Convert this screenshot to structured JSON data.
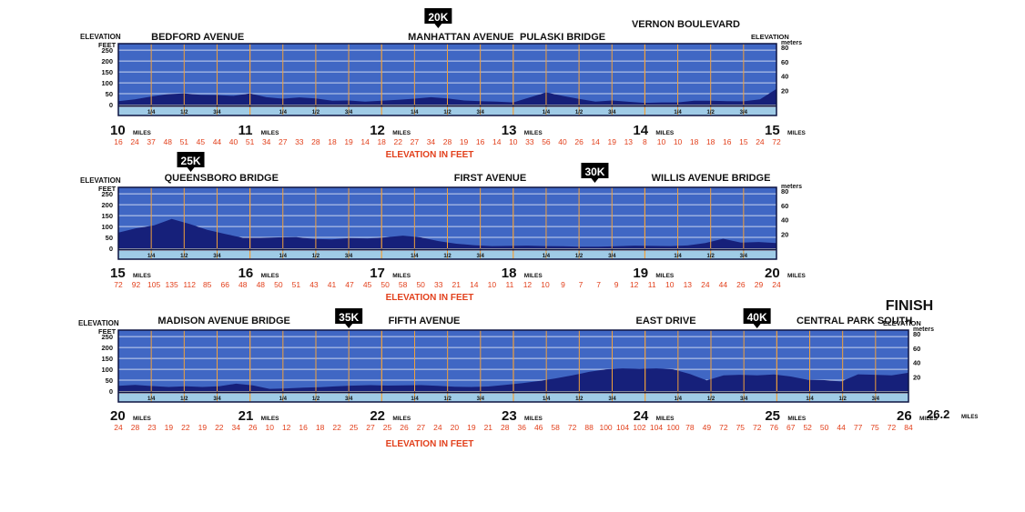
{
  "chart_data": [
    {
      "type": "area",
      "mile_start": 10,
      "mile_end": 15,
      "mile_labels": [
        "10",
        "11",
        "12",
        "13",
        "14",
        "15"
      ],
      "miles_word": "MILES",
      "quarter_labels": [
        "1/4",
        "1/2",
        "3/4"
      ],
      "yticks_feet": [
        "250",
        "200",
        "150",
        "100",
        "50",
        "0"
      ],
      "yticks_meters": [
        "80",
        "60",
        "40",
        "20"
      ],
      "y_left_title": [
        "ELEVATION",
        "FEET"
      ],
      "y_right_title": [
        "ELEVATION",
        "meters"
      ],
      "ylim_feet": [
        0,
        280
      ],
      "place_labels": [
        {
          "text": "BEDFORD AVENUE",
          "mile": 10.25
        },
        {
          "text": "MANHATTAN AVENUE",
          "mile": 12.2
        },
        {
          "text": "PULASKI BRIDGE",
          "mile": 13.05
        },
        {
          "text": "VERNON BOULEVARD",
          "mile": 13.9
        }
      ],
      "km_marker": {
        "text": "20K",
        "mile": 12.43
      },
      "elevation_feet": [
        16,
        24,
        37,
        48,
        51,
        45,
        44,
        40,
        51,
        34,
        27,
        33,
        28,
        18,
        19,
        14,
        18,
        22,
        27,
        34,
        28,
        19,
        16,
        14,
        10,
        33,
        56,
        40,
        26,
        14,
        19,
        13,
        8,
        10,
        10,
        18,
        18,
        16,
        15,
        24,
        72
      ],
      "elevation_labels": [
        "16",
        "24",
        "37",
        "48",
        "51",
        "45",
        "44",
        "40",
        "51",
        "34",
        "27",
        "33",
        "28",
        "18",
        "19",
        "14",
        "18",
        "22",
        "27",
        "34",
        "28",
        "19",
        "16",
        "14",
        "10",
        "33",
        "56",
        "40",
        "26",
        "14",
        "19",
        "13",
        "8",
        "10",
        "10",
        "18",
        "18",
        "16",
        "15",
        "24",
        "72"
      ],
      "xlabel": "ELEVATION IN FEET"
    },
    {
      "type": "area",
      "mile_start": 15,
      "mile_end": 20,
      "mile_labels": [
        "15",
        "16",
        "17",
        "18",
        "19",
        "20"
      ],
      "miles_word": "MILES",
      "quarter_labels": [
        "1/4",
        "1/2",
        "3/4"
      ],
      "yticks_feet": [
        "250",
        "200",
        "150",
        "100",
        "50",
        "0"
      ],
      "yticks_meters": [
        "80",
        "60",
        "40",
        "20"
      ],
      "y_left_title": [
        "ELEVATION",
        "FEET"
      ],
      "y_right_title": [
        "meters"
      ],
      "ylim_feet": [
        0,
        280
      ],
      "place_labels": [
        {
          "text": "QUEENSBORO BRIDGE",
          "mile": 15.35
        },
        {
          "text": "FIRST AVENUE",
          "mile": 17.55
        },
        {
          "text": "WILLIS AVENUE BRIDGE",
          "mile": 19.05
        }
      ],
      "km_marker": {
        "text": "30K",
        "mile": 18.62
      },
      "km_marker_above": {
        "text": "25K",
        "mile": 15.55
      },
      "elevation_feet": [
        72,
        92,
        105,
        135,
        112,
        85,
        66,
        48,
        48,
        50,
        51,
        43,
        41,
        47,
        45,
        50,
        58,
        50,
        33,
        21,
        14,
        10,
        11,
        12,
        10,
        9,
        7,
        7,
        9,
        12,
        11,
        10,
        13,
        24,
        44,
        26,
        29,
        24
      ],
      "elevation_labels": [
        "72",
        "92",
        "105",
        "135",
        "112",
        "85",
        "66",
        "48",
        "48",
        "50",
        "51",
        "43",
        "41",
        "47",
        "45",
        "50",
        "58",
        "50",
        "33",
        "21",
        "14",
        "10",
        "11",
        "12",
        "10",
        "9",
        "7",
        "7",
        "9",
        "12",
        "11",
        "10",
        "13",
        "24",
        "44",
        "26",
        "29",
        "24"
      ],
      "xlabel": "ELEVATION IN FEET"
    },
    {
      "type": "area",
      "mile_start": 20,
      "mile_end": 26,
      "mile_labels": [
        "20",
        "21",
        "22",
        "23",
        "24",
        "25",
        "26"
      ],
      "mile_final": "26.2",
      "miles_word": "MILES",
      "quarter_labels": [
        "1/4",
        "1/2",
        "3/4"
      ],
      "yticks_feet": [
        "250",
        "200",
        "150",
        "100",
        "50",
        "0"
      ],
      "yticks_meters": [
        "80",
        "60",
        "40",
        "20"
      ],
      "y_left_title": [
        "ELEVATION",
        "FEET"
      ],
      "y_right_title": [
        "ELEVATION",
        "meters"
      ],
      "ylim_feet": [
        0,
        280
      ],
      "place_labels": [
        {
          "text": "MADISON AVENUE BRIDGE",
          "mile": 20.3
        },
        {
          "text": "FIFTH AVENUE",
          "mile": 22.05
        },
        {
          "text": "EAST DRIVE",
          "mile": 23.93
        },
        {
          "text": "CENTRAL PARK SOUTH",
          "mile": 25.15
        }
      ],
      "km_markers": [
        {
          "text": "35K",
          "mile": 21.75
        },
        {
          "text": "40K",
          "mile": 24.85
        }
      ],
      "finish_label": "FINISH",
      "elevation_feet": [
        24,
        28,
        23,
        19,
        22,
        19,
        22,
        34,
        26,
        10,
        12,
        16,
        18,
        22,
        25,
        27,
        25,
        26,
        27,
        24,
        20,
        19,
        21,
        28,
        36,
        46,
        58,
        72,
        88,
        100,
        104,
        102,
        104,
        100,
        78,
        49,
        72,
        75,
        72,
        76,
        67,
        52,
        50,
        44,
        77,
        75,
        72,
        84
      ],
      "elevation_labels": [
        "24",
        "28",
        "23",
        "19",
        "22",
        "19",
        "22",
        "34",
        "26",
        "10",
        "12",
        "16",
        "18",
        "22",
        "25",
        "27",
        "25",
        "26",
        "27",
        "24",
        "20",
        "19",
        "21",
        "28",
        "36",
        "46",
        "58",
        "72",
        "88",
        "100",
        "104",
        "102",
        "104",
        "100",
        "78",
        "49",
        "72",
        "75",
        "72",
        "76",
        "67",
        "52",
        "50",
        "44",
        "77",
        "75",
        "72",
        "84"
      ],
      "xlabel": "ELEVATION IN FEET"
    }
  ],
  "colors": {
    "band": "#4067c4",
    "terrain": "#16207a",
    "gridline": "#c9d4ef",
    "frame": "#0d1442",
    "quarter_strip": "#9fcbe6",
    "mile_tick": "#f2a03a",
    "elevation_text": "#e2401c",
    "marker_bg": "#000000"
  }
}
